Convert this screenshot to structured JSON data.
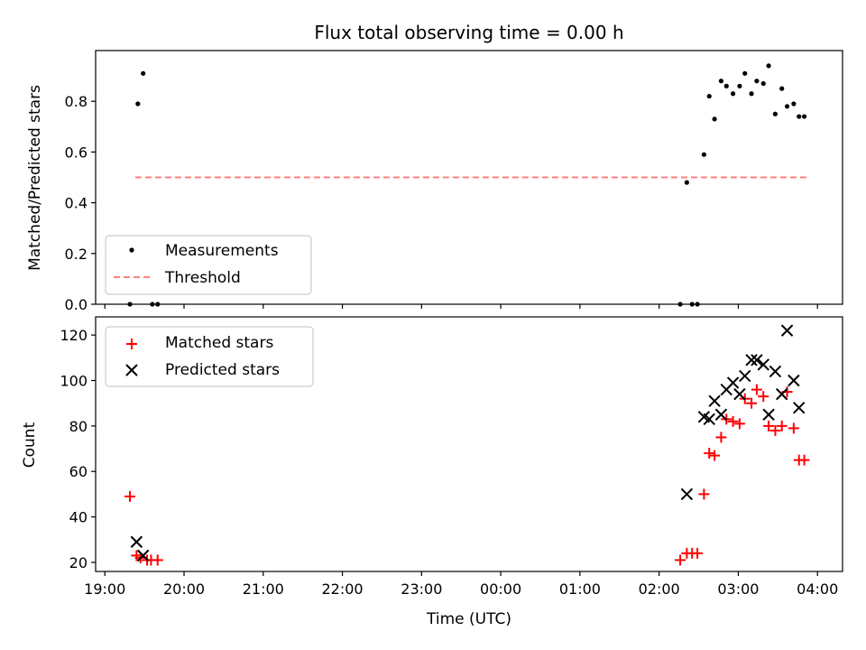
{
  "chart_data": [
    {
      "type": "scatter",
      "title": "Flux total observing time = 0.00 h",
      "xlabel": "",
      "ylabel": "Matched/Predicted stars",
      "ylim": [
        0,
        1.0
      ],
      "yticks": [
        0.0,
        0.2,
        0.4,
        0.6,
        0.8
      ],
      "ytick_labels": [
        "0.0",
        "0.2",
        "0.4",
        "0.6",
        "0.8"
      ],
      "legend_position": "lower-left",
      "series": [
        {
          "name": "Measurements",
          "marker": "dot",
          "color": "#000000",
          "x": [
            "19:19",
            "19:25",
            "19:29",
            "19:36",
            "19:40",
            "02:16",
            "02:21",
            "02:25",
            "02:29",
            "02:34",
            "02:38",
            "02:42",
            "02:47",
            "02:51",
            "02:56",
            "03:01",
            "03:05",
            "03:10",
            "03:14",
            "03:19",
            "03:23",
            "03:28",
            "03:33",
            "03:37",
            "03:42",
            "03:46",
            "03:50"
          ],
          "y": [
            0.0,
            0.79,
            0.91,
            0.0,
            0.0,
            0.0,
            0.48,
            0.0,
            0.0,
            0.59,
            0.82,
            0.73,
            0.88,
            0.86,
            0.83,
            0.86,
            0.91,
            0.83,
            0.88,
            0.87,
            0.94,
            0.75,
            0.85,
            0.78,
            0.79,
            0.74,
            0.74
          ]
        },
        {
          "name": "Threshold",
          "marker": "dashed-line",
          "color": "#ff7f7f",
          "x": [
            "19:23",
            "03:52"
          ],
          "y": [
            0.5,
            0.5
          ]
        }
      ]
    },
    {
      "type": "scatter",
      "title": "",
      "xlabel": "Time (UTC)",
      "ylabel": "Count",
      "ylim": [
        16,
        128
      ],
      "yticks": [
        20,
        40,
        60,
        80,
        100,
        120
      ],
      "ytick_labels": [
        "20",
        "40",
        "60",
        "80",
        "100",
        "120"
      ],
      "xlim": [
        "18:53",
        "04:19"
      ],
      "xticks": [
        "19:00",
        "20:00",
        "21:00",
        "22:00",
        "23:00",
        "00:00",
        "01:00",
        "02:00",
        "03:00",
        "04:00"
      ],
      "xtick_labels": [
        "19:00",
        "20:00",
        "21:00",
        "22:00",
        "23:00",
        "00:00",
        "01:00",
        "02:00",
        "03:00",
        "04:00"
      ],
      "legend_position": "top-left",
      "series": [
        {
          "name": "Matched stars",
          "marker": "plus",
          "color": "#ff0000",
          "x": [
            "19:19",
            "19:24",
            "19:27",
            "19:32",
            "19:35",
            "19:40",
            "02:16",
            "02:21",
            "02:25",
            "02:29",
            "02:34",
            "02:38",
            "02:42",
            "02:47",
            "02:51",
            "02:56",
            "03:01",
            "03:05",
            "03:10",
            "03:14",
            "03:19",
            "03:23",
            "03:28",
            "03:33",
            "03:37",
            "03:42",
            "03:46",
            "03:50"
          ],
          "y": [
            49,
            23,
            22,
            21,
            21,
            21,
            21,
            24,
            24,
            24,
            50,
            68,
            67,
            75,
            83,
            82,
            81,
            92,
            90,
            96,
            93,
            80,
            78,
            80,
            95,
            79,
            65,
            65
          ]
        },
        {
          "name": "Predicted stars",
          "marker": "x",
          "color": "#000000",
          "x": [
            "19:24",
            "19:29",
            "02:21",
            "02:34",
            "02:38",
            "02:42",
            "02:47",
            "02:51",
            "02:56",
            "03:01",
            "03:05",
            "03:10",
            "03:14",
            "03:19",
            "03:23",
            "03:28",
            "03:33",
            "03:37",
            "03:42",
            "03:46"
          ],
          "y": [
            29,
            23,
            50,
            84,
            83,
            91,
            85,
            96,
            99,
            94,
            102,
            109,
            109,
            107,
            85,
            104,
            94,
            122,
            100,
            88
          ]
        }
      ]
    }
  ],
  "legend": {
    "top_items": [
      "Measurements",
      "Threshold"
    ],
    "bottom_items": [
      "Matched stars",
      "Predicted stars"
    ]
  }
}
